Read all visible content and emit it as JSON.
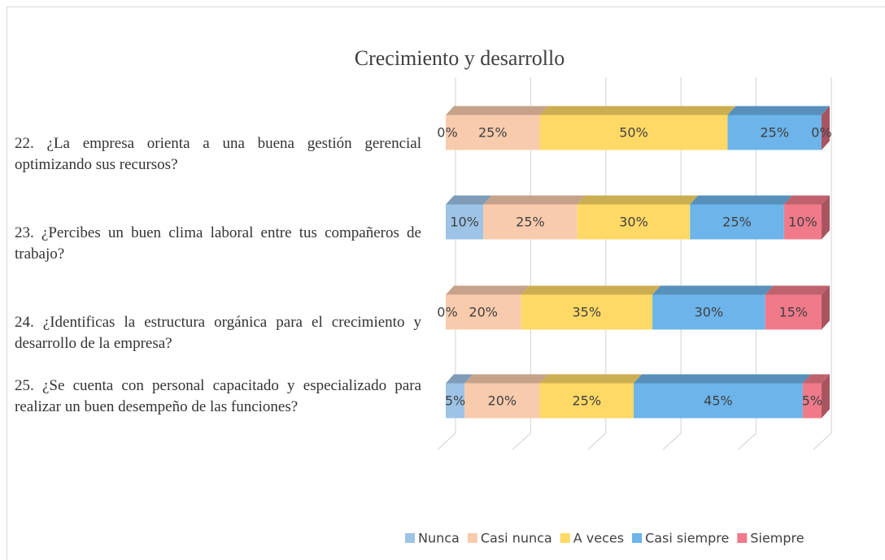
{
  "chart_data": {
    "type": "bar3d_stacked_horizontal",
    "title": "Crecimiento  y desarrollo",
    "categories": [
      "22. ¿La empresa orienta a una buena gestión gerencial optimizando sus recursos?",
      "23. ¿Percibes un buen clima laboral entre tus compañeros de trabajo?",
      "24. ¿Identificas la estructura orgánica para el crecimiento y desarrollo de la empresa?",
      "25. ¿Se cuenta con personal capacitado y especializado para realizar un buen desempeño de las funciones?"
    ],
    "series": [
      {
        "name": "Nunca",
        "color": "#9dc3e6",
        "values": [
          0,
          10,
          0,
          5
        ],
        "value_labels": [
          "0%",
          "10%",
          "0%",
          "5%"
        ]
      },
      {
        "name": "Casi nunca",
        "color": "#f8cbad",
        "values": [
          25,
          25,
          20,
          20
        ],
        "value_labels": [
          "25%",
          "25%",
          "20%",
          "20%"
        ]
      },
      {
        "name": "A veces",
        "color": "#ffd966",
        "values": [
          50,
          30,
          35,
          25
        ],
        "value_labels": [
          "50%",
          "30%",
          "35%",
          "25%"
        ]
      },
      {
        "name": "Casi siempre",
        "color": "#6cb4ea",
        "values": [
          25,
          25,
          30,
          45
        ],
        "value_labels": [
          "25%",
          "25%",
          "30%",
          "45%"
        ]
      },
      {
        "name": "Siempre",
        "color": "#f07a8a",
        "values": [
          0,
          10,
          15,
          5
        ],
        "value_labels": [
          "0%",
          "10%",
          "15%",
          "5%"
        ]
      }
    ],
    "xlim": [
      0,
      100
    ],
    "xticks": [
      0,
      20,
      40,
      60,
      80,
      100
    ],
    "grid": true,
    "legend": "bottom"
  }
}
